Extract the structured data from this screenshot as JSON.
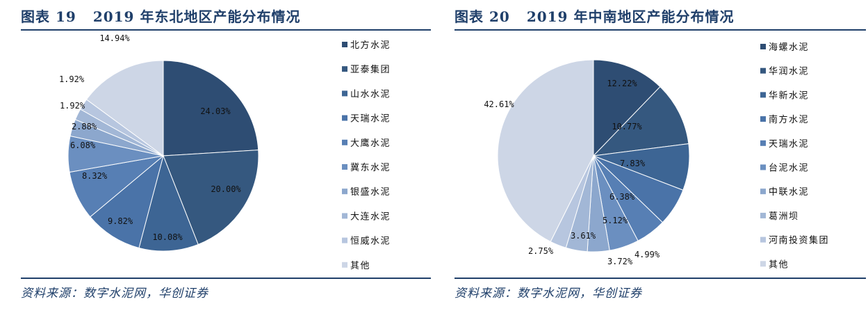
{
  "panels": [
    {
      "title_prefix": "图表",
      "title_number": "19",
      "title_text": "2019 年东北地区产能分布情况",
      "source": "资料来源：数字水泥网，华创证券"
    },
    {
      "title_prefix": "图表",
      "title_number": "20",
      "title_text": "2019 年中南地区产能分布情况",
      "source": "资料来源：数字水泥网，华创证券"
    }
  ],
  "chart_data": [
    {
      "type": "pie",
      "title": "2019 年东北地区产能分布情况",
      "categories": [
        "北方水泥",
        "亚泰集团",
        "山水水泥",
        "天瑞水泥",
        "大鹰水泥",
        "冀东水泥",
        "银盛水泥",
        "大连水泥",
        "恒威水泥",
        "其他"
      ],
      "values": [
        24.03,
        20.0,
        10.08,
        9.82,
        8.32,
        6.08,
        2.88,
        1.92,
        1.92,
        14.94
      ],
      "labels": [
        "24.03%",
        "20.00%",
        "10.08%",
        "9.82%",
        "8.32%",
        "6.08%",
        "2.88%",
        "1.92%",
        "1.92%",
        "14.94%"
      ],
      "colors": [
        "#2e4d73",
        "#35587f",
        "#3d6594",
        "#4a73a8",
        "#577fb4",
        "#6b8fc0",
        "#8ca7cd",
        "#a2b7d6",
        "#b7c6df",
        "#cdd6e6"
      ],
      "legend_position": "right"
    },
    {
      "type": "pie",
      "title": "2019 年中南地区产能分布情况",
      "categories": [
        "海螺水泥",
        "华润水泥",
        "华新水泥",
        "南方水泥",
        "天瑞水泥",
        "台泥水泥",
        "中联水泥",
        "葛洲坝",
        "河南投资集团",
        "其他"
      ],
      "values": [
        12.22,
        10.77,
        7.83,
        6.38,
        5.12,
        4.99,
        3.72,
        3.61,
        2.75,
        42.61
      ],
      "labels": [
        "12.22%",
        "10.77%",
        "7.83%",
        "6.38%",
        "5.12%",
        "4.99%",
        "3.72%",
        "3.61%",
        "2.75%",
        "42.61%"
      ],
      "colors": [
        "#2e4d73",
        "#35587f",
        "#3d6594",
        "#4a73a8",
        "#577fb4",
        "#6b8fc0",
        "#8ca7cd",
        "#a2b7d6",
        "#b7c6df",
        "#cdd6e6"
      ],
      "legend_position": "right"
    }
  ]
}
